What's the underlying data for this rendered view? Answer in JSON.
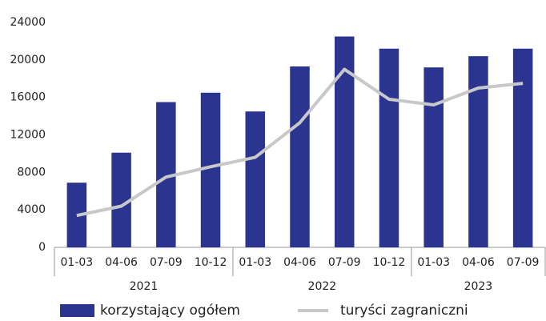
{
  "chart_data": {
    "type": "bar-line",
    "categories": [
      "01-03",
      "04-06",
      "07-09",
      "10-12",
      "01-03",
      "04-06",
      "07-09",
      "10-12",
      "01-03",
      "04-06",
      "07-09"
    ],
    "x_groups": [
      {
        "label": "2021",
        "span": 4
      },
      {
        "label": "2022",
        "span": 4
      },
      {
        "label": "2023",
        "span": 3
      }
    ],
    "series": [
      {
        "name": "korzystający ogółem",
        "type": "bar",
        "color": "#2b3590",
        "values": [
          6900,
          10100,
          15500,
          16500,
          14500,
          19300,
          22500,
          21200,
          19200,
          20400,
          21200
        ]
      },
      {
        "name": "turyści zagraniczni",
        "type": "line",
        "color": "#c8c8c8",
        "values": [
          3400,
          4400,
          7500,
          8600,
          9600,
          13300,
          19000,
          15800,
          15200,
          17000,
          17500
        ]
      }
    ],
    "ylim": [
      0,
      24000
    ],
    "yticks": [
      0,
      4000,
      8000,
      12000,
      16000,
      20000,
      24000
    ],
    "grid": false,
    "legend": "bottom"
  }
}
